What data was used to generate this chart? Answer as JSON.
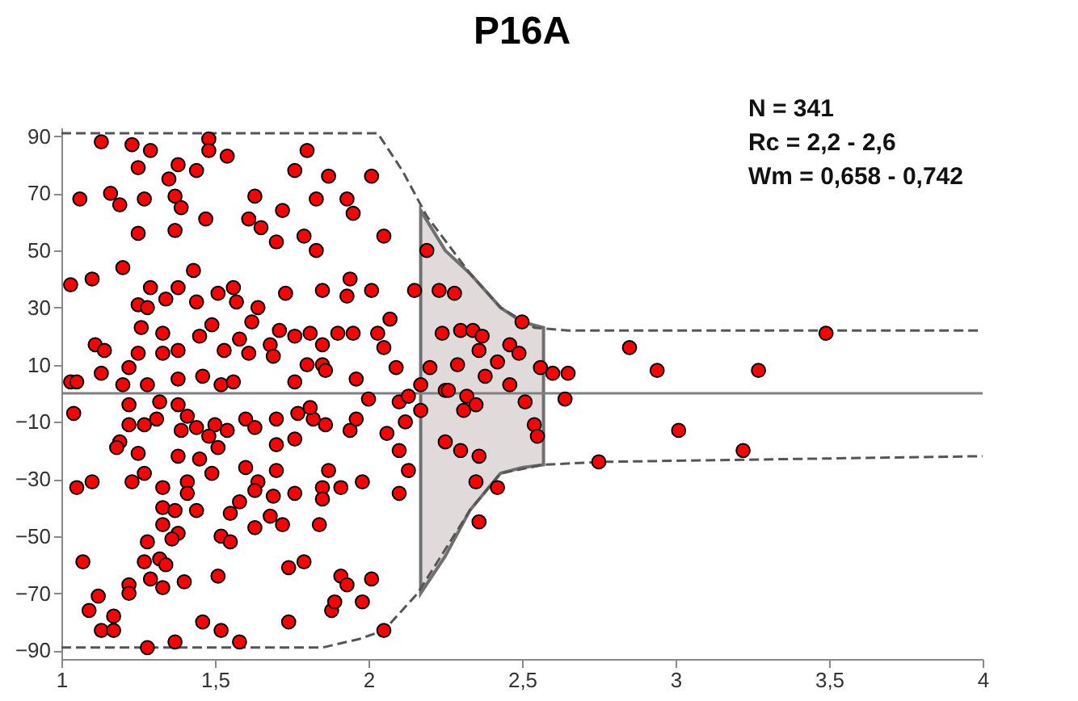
{
  "chart_data": {
    "type": "scatter",
    "title": "P16A",
    "annotations": [
      "N = 341",
      "Rc = 2,2 - 2,6",
      "Wm = 0,658 - 0,742"
    ],
    "xlim": [
      1,
      4
    ],
    "ylim": [
      -93,
      93
    ],
    "xticks": [
      1,
      {
        "value": 1.5,
        "label": "1,5"
      },
      2,
      {
        "value": 2.5,
        "label": "2,5"
      },
      3,
      {
        "value": 3.5,
        "label": "3,5"
      },
      4
    ],
    "yticks": [
      -90,
      -70,
      -50,
      -30,
      -10,
      10,
      30,
      50,
      70,
      90
    ],
    "grid": false,
    "series": [
      {
        "type": "line",
        "color": "#808080",
        "line_style": "solid",
        "x": [
          1,
          2.17,
          2.25,
          2.33,
          2.43,
          2.5,
          2.57,
          4
        ],
        "values": [
          0,
          0,
          0,
          0,
          0,
          0,
          0,
          0
        ],
        "upper": [
          null,
          64,
          50,
          42,
          30,
          25,
          23,
          null
        ],
        "lower": [
          null,
          -70,
          -57,
          -41,
          -28,
          -26,
          -25,
          null
        ]
      },
      {
        "type": "line",
        "color": "#555555",
        "line_style": "dashed",
        "x": [
          1,
          2.03,
          2.11,
          2.19,
          2.33,
          2.43,
          2.54,
          2.65,
          4
        ],
        "values": [
          91,
          91,
          78,
          62,
          42,
          30,
          23,
          22,
          22
        ]
      },
      {
        "type": "line",
        "color": "#555555",
        "line_style": "dashed",
        "x": [
          1,
          1.85,
          1.97,
          2.05,
          2.16,
          2.33,
          2.43,
          2.57,
          2.76,
          4
        ],
        "values": [
          -89,
          -89,
          -86,
          -83,
          -70,
          -41,
          -28,
          -25,
          -24,
          -22
        ]
      },
      {
        "color": "#ff0000",
        "marker": "circle",
        "x": [
          1.13,
          1.23,
          1.29,
          1.48,
          1.48,
          1.54,
          1.25,
          1.38,
          1.35,
          1.44,
          1.8,
          1.76,
          1.87,
          2.01,
          1.06,
          1.16,
          1.19,
          1.27,
          1.37,
          1.39,
          1.47,
          1.63,
          1.72,
          1.83,
          1.93,
          1.95,
          1.25,
          1.37,
          1.61,
          1.65,
          1.7,
          1.79,
          1.83,
          2.05,
          1.03,
          1.1,
          1.2,
          1.43,
          1.29,
          1.38,
          1.25,
          1.28,
          1.34,
          1.44,
          1.51,
          1.56,
          1.57,
          1.64,
          1.73,
          1.85,
          1.93,
          1.94,
          2.01,
          1.26,
          1.33,
          1.49,
          1.45,
          1.62,
          1.58,
          1.61,
          1.68,
          1.71,
          1.76,
          1.81,
          1.85,
          1.9,
          1.95,
          2.03,
          1.11,
          1.14,
          1.25,
          1.33,
          1.38,
          1.53,
          1.69,
          1.8,
          1.85,
          1.22,
          1.13,
          1.03,
          1.05,
          1.2,
          1.28,
          1.38,
          1.46,
          1.52,
          1.56,
          1.76,
          1.96,
          1.86,
          1.04,
          1.22,
          1.32,
          1.38,
          1.41,
          1.22,
          1.27,
          1.31,
          1.39,
          1.44,
          1.5,
          1.54,
          1.48,
          1.19,
          1.18,
          1.25,
          1.38,
          1.45,
          1.51,
          1.6,
          1.63,
          1.7,
          1.77,
          1.82,
          1.86,
          1.81,
          1.94,
          1.96,
          2.0,
          1.76,
          1.7,
          1.05,
          1.1,
          1.23,
          1.27,
          1.33,
          1.41,
          1.41,
          1.49,
          1.6,
          1.64,
          1.7,
          1.69,
          1.63,
          1.76,
          1.85,
          1.87,
          1.91,
          1.85,
          1.98,
          1.33,
          1.37,
          1.44,
          1.33,
          1.38,
          1.36,
          1.55,
          1.58,
          1.68,
          1.72,
          1.63,
          1.84,
          1.52,
          1.55,
          1.28,
          1.07,
          1.27,
          1.32,
          1.34,
          1.74,
          1.79,
          1.22,
          1.22,
          1.29,
          1.33,
          1.4,
          1.51,
          1.91,
          1.93,
          2.01,
          1.12,
          1.09,
          1.17,
          1.13,
          1.17,
          1.46,
          1.52,
          1.74,
          1.88,
          1.89,
          1.98,
          2.05,
          1.28,
          1.37,
          1.58,
          2.15,
          2.19,
          2.23,
          2.28,
          2.07,
          2.05,
          2.09,
          2.24,
          2.3,
          2.34,
          2.37,
          2.36,
          2.46,
          2.49,
          2.42,
          2.5,
          2.2,
          2.29,
          2.38,
          2.46,
          2.56,
          2.6,
          2.65,
          2.85,
          2.94,
          2.25,
          2.17,
          2.1,
          2.13,
          2.17,
          2.12,
          2.06,
          2.1,
          2.13,
          2.1,
          2.26,
          2.32,
          2.31,
          2.35,
          2.51,
          2.64,
          2.54,
          2.55,
          2.25,
          2.3,
          2.36,
          2.35,
          2.42,
          2.36,
          2.75,
          3.49,
          3.27,
          3.01,
          3.22
        ],
        "values": [
          88,
          87,
          85,
          89,
          85,
          83,
          79,
          80,
          75,
          78,
          85,
          78,
          76,
          76,
          68,
          70,
          66,
          68,
          69,
          65,
          61,
          69,
          64,
          68,
          68,
          63,
          56,
          57,
          61,
          58,
          53,
          55,
          50,
          55,
          38,
          40,
          44,
          43,
          37,
          37,
          31,
          30,
          33,
          32,
          35,
          37,
          32,
          30,
          35,
          36,
          34,
          40,
          36,
          23,
          21,
          24,
          20,
          25,
          19,
          14,
          17,
          22,
          20,
          21,
          17,
          21,
          21,
          21,
          17,
          15,
          14,
          14,
          15,
          15,
          13,
          10,
          10,
          9,
          7,
          4,
          4,
          3,
          3,
          5,
          6,
          3,
          4,
          4,
          5,
          8,
          -7,
          -4,
          -3,
          -4,
          -8,
          -11,
          -11,
          -9,
          -13,
          -12,
          -11,
          -13,
          -15,
          -17,
          -19,
          -21,
          -22,
          -23,
          -19,
          -9,
          -12,
          -9,
          -7,
          -9,
          -11,
          -5,
          -13,
          -9,
          -2,
          -16,
          -18,
          -33,
          -31,
          -31,
          -28,
          -33,
          -31,
          -35,
          -28,
          -26,
          -31,
          -27,
          -36,
          -34,
          -35,
          -33,
          -27,
          -33,
          -37,
          -31,
          -40,
          -41,
          -41,
          -46,
          -49,
          -51,
          -42,
          -38,
          -43,
          -46,
          -47,
          -46,
          -50,
          -52,
          -52,
          -59,
          -59,
          -58,
          -60,
          -61,
          -59,
          -67,
          -70,
          -65,
          -68,
          -66,
          -64,
          -64,
          -67,
          -65,
          -71,
          -76,
          -78,
          -83,
          -83,
          -80,
          -83,
          -80,
          -76,
          -73,
          -73,
          -83,
          -89,
          -87,
          -87,
          36,
          50,
          36,
          35,
          26,
          16,
          9,
          21,
          22,
          22,
          20,
          15,
          17,
          14,
          11,
          25,
          9,
          10,
          6,
          3,
          9,
          7,
          7,
          16,
          8,
          1,
          3,
          -3,
          -1,
          -6,
          -10,
          -14,
          -20,
          -27,
          -35,
          1,
          -1,
          -6,
          -4,
          -3,
          -2,
          -11,
          -15,
          -17,
          -20,
          -22,
          -31,
          -33,
          -45,
          -24,
          21,
          8,
          -13,
          -20
        ]
      }
    ]
  }
}
